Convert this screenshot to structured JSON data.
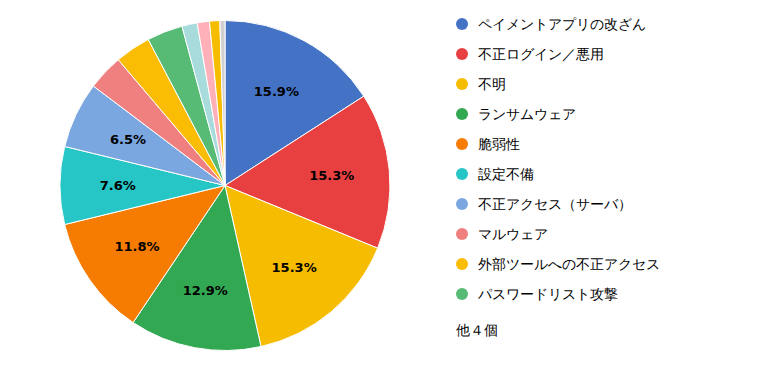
{
  "chart_data": {
    "type": "pie",
    "categories": [
      "ペイメントアプリの改ざん",
      "不正ログイン／悪用",
      "不明",
      "ランサムウェア",
      "脆弱性",
      "設定不備",
      "不正アクセス（サーバ）",
      "マルウェア",
      "外部ツールへの不正アクセス",
      "パスワードリスト攻撃",
      null,
      null,
      null,
      null
    ],
    "values": [
      15.9,
      15.3,
      15.3,
      12.9,
      11.8,
      7.6,
      6.5,
      3.5,
      3.5,
      3.5,
      1.5,
      1.2,
      1.0,
      0.5
    ],
    "value_labels": [
      "15.9%",
      "15.3%",
      "15.3%",
      "12.9%",
      "11.8%",
      "7.6%",
      "6.5%",
      null,
      null,
      null,
      null,
      null,
      null,
      null
    ],
    "colors": [
      "#4472C4",
      "#E84040",
      "#F5BC00",
      "#33A853",
      "#F57C00",
      "#26C6C6",
      "#7BA7E0",
      "#F08080",
      "#FBBC04",
      "#57BB75",
      "#A8DCDC",
      "#FFB0B8",
      "#F5BC00",
      "#D0D0D0"
    ],
    "data_labels": true,
    "legend": "right",
    "annotations": [
      "他４個"
    ]
  }
}
